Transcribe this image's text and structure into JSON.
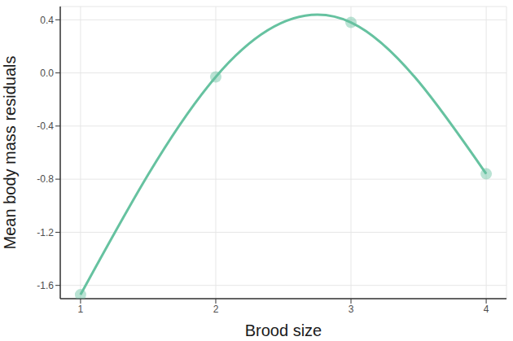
{
  "chart_data": {
    "type": "line",
    "x": [
      1,
      2,
      3,
      4
    ],
    "values": [
      -1.67,
      -0.03,
      0.38,
      -0.76
    ],
    "color": "#66c2a0",
    "marker": "circle",
    "line_style": "smooth",
    "xlabel": "Brood size",
    "ylabel": "Mean body mass residuals",
    "xlim": [
      0.85,
      4.15
    ],
    "xticks": [
      1,
      2,
      3,
      4
    ],
    "ylim": [
      -1.7,
      0.5
    ],
    "yticks": [
      0.4,
      {
        "value": 0,
        "label": "0.0"
      },
      -0.4,
      -0.8,
      -1.2,
      -1.6
    ],
    "grid": true
  }
}
